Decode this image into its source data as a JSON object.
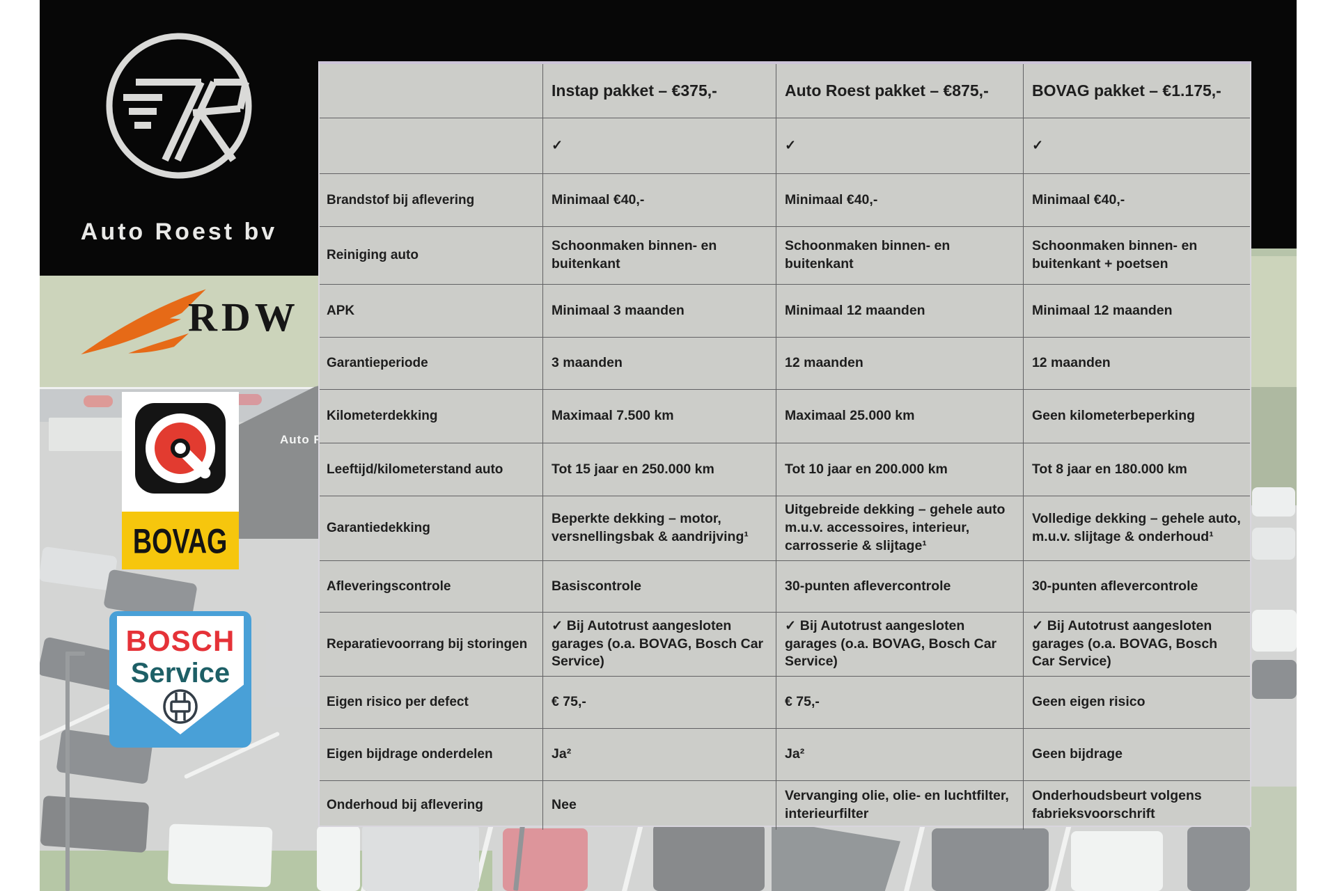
{
  "branding": {
    "company_name": "Auto Roest bv",
    "logo_monogram": "7R",
    "building_sign": "Auto Ro",
    "partner_logos": {
      "rdw": "RDW",
      "bovag": "BOVAG",
      "bosch_line1": "BOSCH",
      "bosch_line2": "Service"
    }
  },
  "colors": {
    "black_band": "#070707",
    "table_background": "#cccdc9",
    "table_border": "#616163",
    "table_top_accent": "#ccc4d8",
    "table_text": "#1e1e1e",
    "rdw_orange": "#e66a17",
    "bovag_yellow": "#f6c60d",
    "bovag_red": "#e23b30",
    "bosch_blue": "#49a0d7",
    "bosch_red": "#e53238",
    "bosch_teal": "#1d5f66"
  },
  "table": {
    "columns": [
      "",
      "Instap pakket – €375,-",
      "Auto Roest pakket – €875,-",
      "BOVAG pakket – €1.175,-"
    ],
    "rows": [
      {
        "label": "",
        "values": [
          "✓",
          "✓",
          "✓"
        ]
      },
      {
        "label": "Brandstof bij aflevering",
        "values": [
          "Minimaal €40,-",
          "Minimaal €40,-",
          "Minimaal €40,-"
        ]
      },
      {
        "label": "Reiniging auto",
        "values": [
          "Schoonmaken binnen- en buitenkant",
          "Schoonmaken binnen- en buitenkant",
          "Schoonmaken binnen- en buitenkant + poetsen"
        ]
      },
      {
        "label": "APK",
        "values": [
          "Minimaal 3 maanden",
          "Minimaal 12 maanden",
          "Minimaal 12 maanden"
        ]
      },
      {
        "label": "Garantieperiode",
        "values": [
          "3 maanden",
          "12 maanden",
          "12 maanden"
        ]
      },
      {
        "label": "Kilometerdekking",
        "values": [
          "Maximaal 7.500 km",
          "Maximaal 25.000 km",
          "Geen kilometerbeperking"
        ]
      },
      {
        "label": "Leeftijd/kilometerstand auto",
        "values": [
          "Tot 15 jaar en 250.000 km",
          "Tot 10 jaar en 200.000 km",
          "Tot 8 jaar en 180.000 km"
        ]
      },
      {
        "label": "Garantiedekking",
        "values": [
          "Beperkte dekking – motor, versnellingsbak & aandrijving¹",
          "Uitgebreide dekking – gehele auto m.u.v. accessoires, interieur, carrosserie & slijtage¹",
          "Volledige dekking – gehele auto, m.u.v. slijtage & onderhoud¹"
        ]
      },
      {
        "label": "Afleveringscontrole",
        "values": [
          "Basiscontrole",
          "30-punten aflevercontrole",
          "30-punten aflevercontrole"
        ]
      },
      {
        "label": "Reparatievoorrang bij storingen",
        "values": [
          "✓ Bij Autotrust aangesloten garages (o.a. BOVAG, Bosch Car Service)",
          "✓ Bij Autotrust aangesloten garages (o.a. BOVAG, Bosch Car Service)",
          "✓ Bij Autotrust aangesloten garages (o.a. BOVAG, Bosch Car Service)"
        ]
      },
      {
        "label": "Eigen risico per defect",
        "values": [
          "€ 75,-",
          "€ 75,-",
          "Geen eigen risico"
        ]
      },
      {
        "label": "Eigen bijdrage onderdelen",
        "values": [
          "Ja²",
          "Ja²",
          "Geen bijdrage"
        ]
      },
      {
        "label": "Onderhoud bij aflevering",
        "values": [
          "Nee",
          "Vervanging olie, olie- en luchtfilter, interieurfilter",
          "Onderhoudsbeurt volgens fabrieksvoorschrift"
        ]
      }
    ]
  }
}
